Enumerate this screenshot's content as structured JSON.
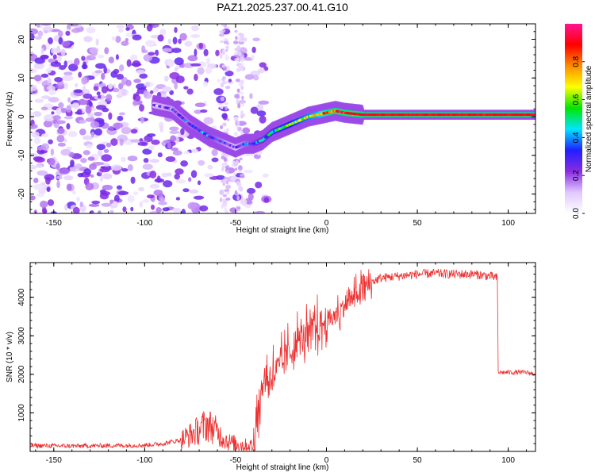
{
  "figure": {
    "title": "PAZ1.2025.237.00.41.G10"
  },
  "chart_data": [
    {
      "type": "heatmap",
      "title": "PAZ1.2025.237.00.41.G10",
      "xlabel": "Height of straight line (km)",
      "ylabel": "Frequency (Hz)",
      "xlim": [
        -163,
        115
      ],
      "ylim": [
        -25,
        24
      ],
      "x_ticks": [
        -150,
        -100,
        -50,
        0,
        50,
        100
      ],
      "y_ticks": [
        -20,
        -10,
        0,
        10,
        20
      ],
      "colorbar": {
        "label": "Normalized spectral amplitude",
        "range": [
          0.0,
          1.0
        ],
        "ticks": [
          0.0,
          0.2,
          0.4,
          0.6,
          0.8
        ],
        "colors": [
          "#ffffff",
          "#e0c8ff",
          "#8a2be2",
          "#2020ff",
          "#00e5ff",
          "#00e600",
          "#ffff00",
          "#ff8c00",
          "#ff0000",
          "#ff1493"
        ]
      },
      "ridge": {
        "x": [
          -95,
          -85,
          -75,
          -65,
          -55,
          -50,
          -45,
          -40,
          -35,
          -30,
          -25,
          -20,
          -15,
          -10,
          -5,
          0,
          5,
          10,
          20,
          40,
          60,
          80,
          100,
          115
        ],
        "frequency": [
          3,
          2,
          -2,
          -5,
          -7,
          -8,
          -7,
          -7,
          -6,
          -4,
          -3,
          -2,
          -1,
          0,
          0.5,
          1,
          1.5,
          1,
          0.5,
          0.5,
          0.5,
          0.5,
          0.5,
          0.5
        ],
        "amplitude": [
          0.2,
          0.25,
          0.3,
          0.35,
          0.25,
          0.2,
          0.3,
          0.35,
          0.4,
          0.45,
          0.5,
          0.55,
          0.6,
          0.65,
          0.7,
          0.8,
          0.85,
          0.9,
          0.9,
          0.9,
          0.9,
          0.9,
          0.9,
          0.9
        ]
      }
    },
    {
      "type": "line",
      "xlabel": "Height of straight line (km)",
      "ylabel": "SNR (10 * v/v)",
      "xlim": [
        -163,
        115
      ],
      "ylim": [
        0,
        4900
      ],
      "x_ticks": [
        -150,
        -100,
        -50,
        0,
        50,
        100
      ],
      "y_ticks": [
        1000,
        2000,
        3000,
        4000
      ],
      "series": [
        {
          "name": "SNR",
          "color": "#ee3030",
          "x": [
            -163,
            -140,
            -120,
            -100,
            -90,
            -80,
            -72,
            -66,
            -62,
            -58,
            -54,
            -50,
            -45,
            -40,
            -38,
            -35,
            -30,
            -25,
            -20,
            -15,
            -10,
            -5,
            0,
            5,
            10,
            15,
            20,
            25,
            30,
            40,
            50,
            60,
            70,
            80,
            90,
            94,
            94.5,
            100,
            110,
            115
          ],
          "values": [
            150,
            140,
            150,
            160,
            200,
            300,
            500,
            700,
            600,
            400,
            250,
            200,
            150,
            150,
            900,
            1800,
            2000,
            2200,
            2600,
            2900,
            3000,
            3200,
            3400,
            3500,
            3800,
            4000,
            4200,
            4400,
            4500,
            4550,
            4600,
            4620,
            4600,
            4600,
            4550,
            4500,
            2050,
            2050,
            2050,
            2000
          ]
        }
      ]
    }
  ]
}
